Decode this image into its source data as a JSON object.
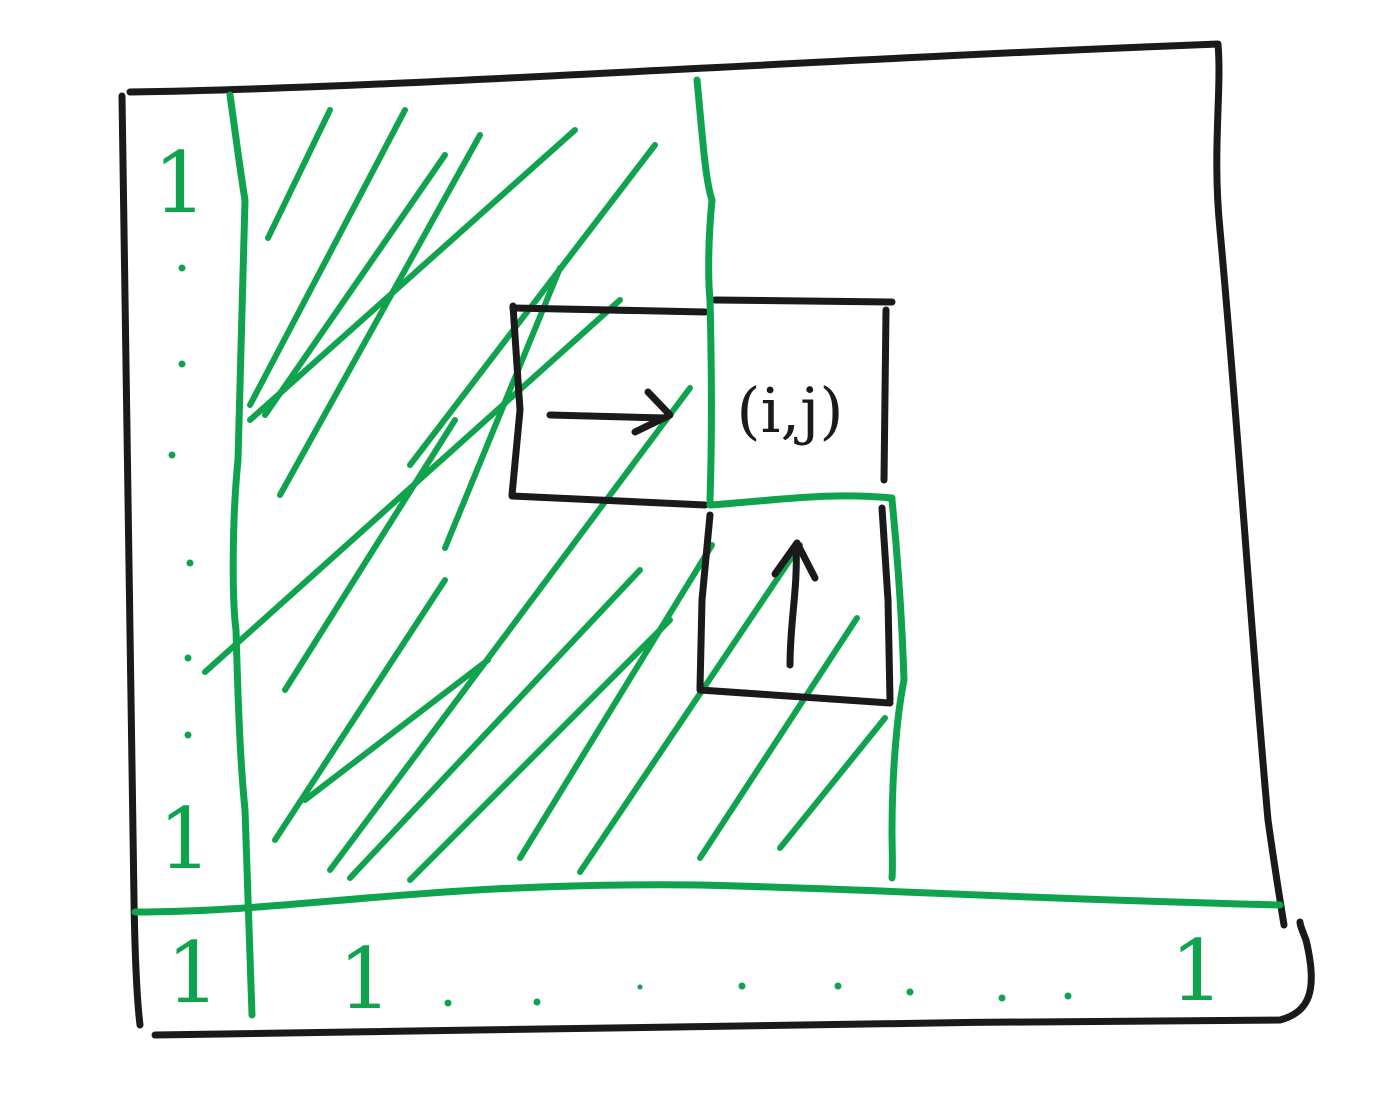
{
  "colors": {
    "ink_black": "#1a1a1a",
    "ink_green": "#0fa34e",
    "background": "#ffffff"
  },
  "labels": {
    "left_top_one": "1",
    "left_bottom_one": "1",
    "bottom_corner_one": "1",
    "bottom_first_one": "1",
    "bottom_last_one": "1",
    "cell_label": "(i,j)"
  },
  "icons": {
    "right_arrow": "right-arrow-icon",
    "up_arrow": "up-arrow-icon"
  }
}
